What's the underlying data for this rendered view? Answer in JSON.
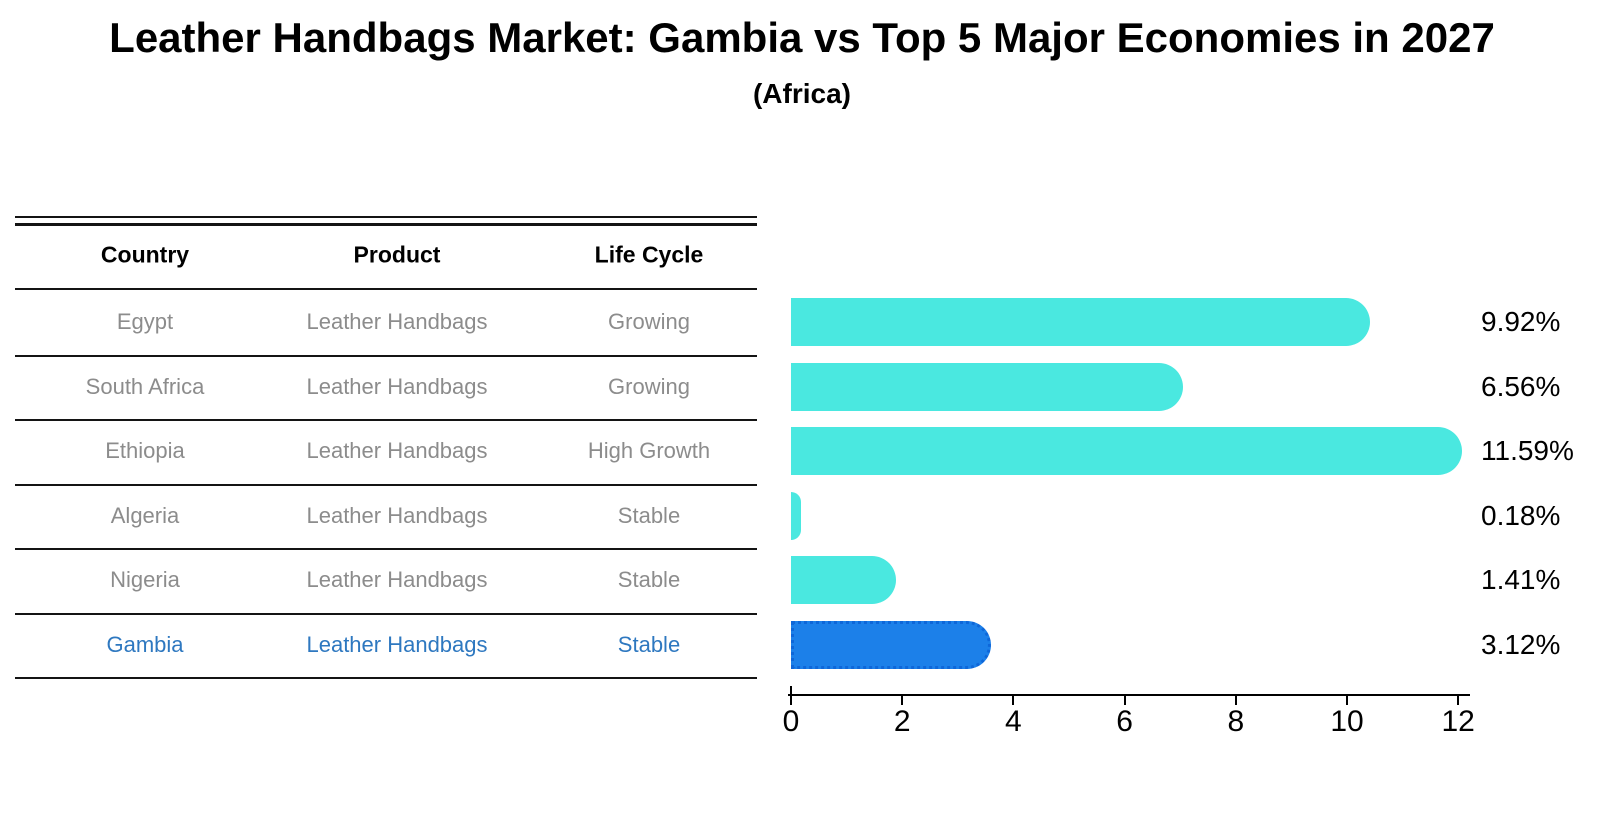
{
  "title": "Leather Handbags Market: Gambia vs Top 5 Major Economies in 2027",
  "subtitle": "(Africa)",
  "table": {
    "headers": [
      "Country",
      "Product",
      "Life Cycle"
    ],
    "rows": [
      {
        "country": "Egypt",
        "product": "Leather Handbags",
        "life_cycle": "Growing",
        "highlight": false
      },
      {
        "country": "South Africa",
        "product": "Leather Handbags",
        "life_cycle": "Growing",
        "highlight": false
      },
      {
        "country": "Ethiopia",
        "product": "Leather Handbags",
        "life_cycle": "High Growth",
        "highlight": false
      },
      {
        "country": "Algeria",
        "product": "Leather Handbags",
        "life_cycle": "Stable",
        "highlight": false
      },
      {
        "country": "Nigeria",
        "product": "Leather Handbags",
        "life_cycle": "Stable",
        "highlight": false
      },
      {
        "country": "Gambia",
        "product": "Leather Handbags",
        "life_cycle": "Stable",
        "highlight": true
      }
    ]
  },
  "chart_data": {
    "type": "bar",
    "orientation": "horizontal",
    "title": "Leather Handbags Market: Gambia vs Top 5 Major Economies in 2027 (Africa)",
    "categories": [
      "Egypt",
      "South Africa",
      "Ethiopia",
      "Algeria",
      "Nigeria",
      "Gambia"
    ],
    "values": [
      9.92,
      6.56,
      11.59,
      0.18,
      1.41,
      3.12
    ],
    "value_labels": [
      "9.92%",
      "6.56%",
      "11.59%",
      "0.18%",
      "1.41%",
      "3.12%"
    ],
    "unit": "%",
    "xlim": [
      0,
      12
    ],
    "x_ticks": [
      "0",
      "2",
      "4",
      "6",
      "8",
      "10",
      "12"
    ],
    "grid": false,
    "legend": false,
    "highlight_index": 5,
    "bar_color": "#4ae8e0",
    "highlight_bar_color": "#1c80e9",
    "highlight_border_color": "#0e67d9"
  },
  "colors": {
    "background": "#ffffff",
    "text": "#000000",
    "row_text": "#8c8c8c",
    "highlight_text": "#2e78c0",
    "table_line": "#141414"
  }
}
